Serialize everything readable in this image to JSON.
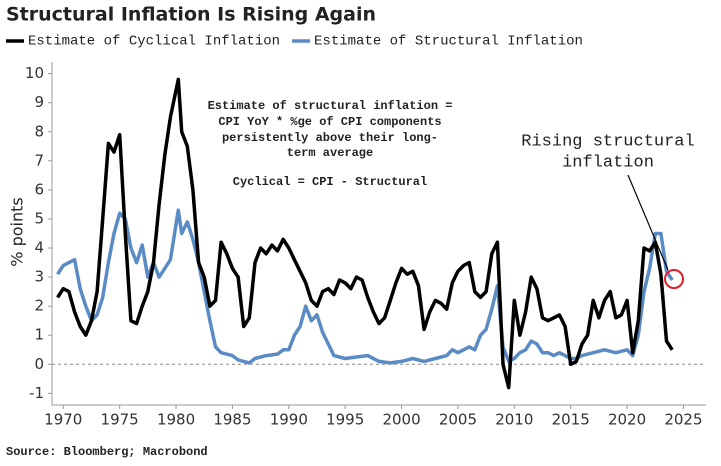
{
  "chart_data": {
    "type": "line",
    "title": "Structural Inflation Is Rising Again",
    "ylabel": "% points",
    "source": "Source: Bloomberg; Macrobond",
    "note_lines": [
      "Estimate of structural inflation =",
      "CPI YoY * %ge of CPI components",
      "persistently above their long-",
      "term average",
      "Cyclical = CPI - Structural"
    ],
    "arrow_label_lines": [
      "Rising structural",
      "inflation"
    ],
    "xlim": [
      1969,
      2027
    ],
    "xticks": [
      1970,
      1975,
      1980,
      1985,
      1990,
      1995,
      2000,
      2005,
      2010,
      2015,
      2020,
      2025
    ],
    "ylim": [
      -1.4,
      10.4
    ],
    "yticks": [
      -1,
      0,
      1,
      2,
      3,
      4,
      5,
      6,
      7,
      8,
      9,
      10
    ],
    "zero_line": true,
    "series": [
      {
        "name": "Estimate of Cyclical Inflation",
        "color": "#000000",
        "x": [
          1969.5,
          1970,
          1970.5,
          1971,
          1971.5,
          1972,
          1972.5,
          1973,
          1973.5,
          1974,
          1974.5,
          1975,
          1975.5,
          1976,
          1976.5,
          1977,
          1977.5,
          1978,
          1978.5,
          1979,
          1979.5,
          1980.2,
          1980.5,
          1981,
          1981.5,
          1982,
          1982.5,
          1983,
          1983.5,
          1984,
          1984.5,
          1985,
          1985.5,
          1986,
          1986.5,
          1987,
          1987.5,
          1988,
          1988.5,
          1989,
          1989.5,
          1990,
          1990.5,
          1991,
          1991.5,
          1992,
          1992.5,
          1993,
          1993.5,
          1994,
          1994.5,
          1995,
          1995.5,
          1996,
          1996.5,
          1997,
          1997.5,
          1998,
          1998.5,
          1999,
          1999.5,
          2000,
          2000.5,
          2001,
          2001.5,
          2002,
          2002.5,
          2003,
          2003.5,
          2004,
          2004.5,
          2005,
          2005.5,
          2006,
          2006.5,
          2007,
          2007.5,
          2008,
          2008.5,
          2009,
          2009.5,
          2010,
          2010.5,
          2011,
          2011.5,
          2012,
          2012.5,
          2013,
          2013.5,
          2014,
          2014.5,
          2015,
          2015.5,
          2016,
          2016.5,
          2017,
          2017.5,
          2018,
          2018.5,
          2019,
          2019.5,
          2020,
          2020.5,
          2021,
          2021.5,
          2022,
          2022.5,
          2023,
          2023.5,
          2024
        ],
        "values": [
          2.3,
          2.6,
          2.5,
          1.8,
          1.3,
          1.0,
          1.5,
          2.5,
          5.0,
          7.6,
          7.3,
          7.9,
          4.5,
          1.5,
          1.4,
          2.0,
          2.5,
          3.5,
          5.5,
          7.2,
          8.5,
          9.8,
          8.0,
          7.5,
          6.0,
          3.5,
          3.0,
          2.0,
          2.2,
          4.2,
          3.8,
          3.3,
          3.0,
          1.3,
          1.6,
          3.5,
          4.0,
          3.8,
          4.1,
          3.9,
          4.3,
          4.0,
          3.6,
          3.2,
          2.8,
          2.2,
          2.0,
          2.5,
          2.6,
          2.4,
          2.9,
          2.8,
          2.6,
          3.0,
          2.9,
          2.3,
          1.8,
          1.4,
          1.6,
          2.2,
          2.8,
          3.3,
          3.1,
          3.2,
          2.7,
          1.2,
          1.8,
          2.2,
          2.1,
          1.9,
          2.8,
          3.2,
          3.4,
          3.5,
          2.5,
          2.3,
          2.5,
          3.8,
          4.2,
          0.0,
          -0.8,
          2.2,
          1.0,
          1.8,
          3.0,
          2.6,
          1.6,
          1.5,
          1.6,
          1.7,
          1.3,
          0.0,
          0.1,
          0.7,
          1.0,
          2.2,
          1.6,
          2.2,
          2.5,
          1.6,
          1.7,
          2.2,
          0.4,
          1.5,
          4.0,
          3.9,
          4.2,
          3.1,
          0.8,
          0.5
        ]
      },
      {
        "name": "Estimate of Structural Inflation",
        "color": "#5b8bc5",
        "x": [
          1969.5,
          1970,
          1970.5,
          1971,
          1971.5,
          1972,
          1972.5,
          1973,
          1973.5,
          1974,
          1974.5,
          1975,
          1975.5,
          1976,
          1976.5,
          1977,
          1977.5,
          1978,
          1978.5,
          1979,
          1979.5,
          1980.2,
          1980.5,
          1981,
          1981.5,
          1982,
          1982.5,
          1983,
          1983.5,
          1984,
          1985,
          1985.5,
          1986,
          1986.5,
          1987,
          1988,
          1989,
          1989.5,
          1990,
          1990.5,
          1991,
          1991.5,
          1992,
          1992.5,
          1993,
          1993.5,
          1994,
          1995,
          1996,
          1997,
          1998,
          1999,
          2000,
          2001,
          2002,
          2003,
          2004,
          2004.5,
          2005,
          2006,
          2006.5,
          2007,
          2007.5,
          2008,
          2008.5,
          2009,
          2009.5,
          2010,
          2010.5,
          2011,
          2011.5,
          2012,
          2012.5,
          2013,
          2013.5,
          2014,
          2015,
          2015.5,
          2016,
          2017,
          2018,
          2019,
          2020,
          2020.5,
          2021,
          2021.5,
          2022,
          2022.5,
          2023,
          2023.5,
          2024
        ],
        "values": [
          3.1,
          3.4,
          3.5,
          3.6,
          2.6,
          2.0,
          1.5,
          1.7,
          2.3,
          3.5,
          4.5,
          5.2,
          5.0,
          4.0,
          3.5,
          4.1,
          3.0,
          3.5,
          3.0,
          3.3,
          3.6,
          5.3,
          4.5,
          4.9,
          4.3,
          3.5,
          2.5,
          1.5,
          0.6,
          0.4,
          0.3,
          0.15,
          0.1,
          0.05,
          0.2,
          0.3,
          0.35,
          0.5,
          0.5,
          1.0,
          1.3,
          2.0,
          1.5,
          1.7,
          1.1,
          0.7,
          0.3,
          0.2,
          0.25,
          0.3,
          0.1,
          0.05,
          0.1,
          0.2,
          0.1,
          0.2,
          0.3,
          0.5,
          0.4,
          0.6,
          0.5,
          1.0,
          1.2,
          1.9,
          2.7,
          0.6,
          0.1,
          0.2,
          0.4,
          0.5,
          0.8,
          0.7,
          0.4,
          0.4,
          0.3,
          0.4,
          0.2,
          0.2,
          0.3,
          0.4,
          0.5,
          0.4,
          0.5,
          0.3,
          1.0,
          2.5,
          3.3,
          4.5,
          4.5,
          3.2,
          2.9
        ]
      }
    ]
  }
}
